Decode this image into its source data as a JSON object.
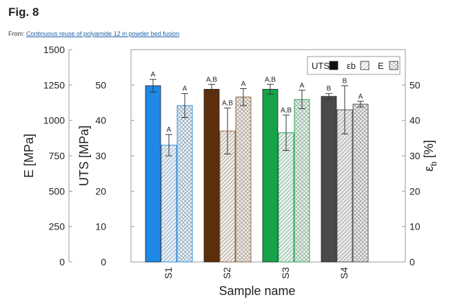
{
  "figure": {
    "title": "Fig. 8",
    "from_prefix": "From: ",
    "from_link": "Continuous reuse of polyamide 12 in powder bed fusion"
  },
  "chart_data": {
    "type": "bar",
    "categories": [
      "S1",
      "S2",
      "S3",
      "S4"
    ],
    "xlabel": "Sample name",
    "axes": {
      "left_outer": {
        "label": "E [MPa]",
        "range": [
          0,
          1500
        ],
        "ticks": [
          "0",
          "250",
          "500",
          "750",
          "1000",
          "1250",
          "1500"
        ]
      },
      "left_inner": {
        "label": "UTS [MPa]",
        "range": [
          0,
          60
        ],
        "ticks": [
          "0",
          "10",
          "20",
          "30",
          "40",
          "50"
        ]
      },
      "right": {
        "label": "ε",
        "label_sub": "b",
        "label_unit": "[%]",
        "range": [
          0,
          60
        ],
        "ticks": [
          "0",
          "10",
          "20",
          "30",
          "40",
          "50"
        ]
      }
    },
    "legend": {
      "placement": "top-right",
      "entries": [
        "UTS",
        "εb",
        "E"
      ]
    },
    "series": [
      {
        "name": "UTS",
        "axis": "left_inner",
        "pattern": "solid",
        "values": [
          49.8,
          48.8,
          48.8,
          46.8
        ],
        "errors": [
          1.8,
          1.4,
          1.4,
          0.8
        ],
        "labels": [
          "A",
          "A,B",
          "A,B",
          "B"
        ],
        "colors": [
          "#1e88e5",
          "#5d2e0c",
          "#16a34a",
          "#4a4a4a"
        ]
      },
      {
        "name": "εb",
        "axis": "right",
        "pattern": "diagonal",
        "values": [
          33.0,
          37.0,
          36.5,
          43.0
        ],
        "errors": [
          3.0,
          6.5,
          5.0,
          6.8
        ],
        "labels": [
          "A",
          "A,B",
          "A,B",
          "B"
        ],
        "colors": [
          "#1e88e5",
          "#8b5a2b",
          "#16a34a",
          "#4a4a4a"
        ]
      },
      {
        "name": "E",
        "axis": "left_outer",
        "pattern": "crosshatch",
        "values": [
          1105,
          1165,
          1148,
          1115
        ],
        "errors": [
          85,
          60,
          65,
          20
        ],
        "labels": [
          "A",
          "A",
          "A",
          "A"
        ],
        "colors": [
          "#1e88e5",
          "#8b5a2b",
          "#16a34a",
          "#4a4a4a"
        ]
      }
    ]
  }
}
